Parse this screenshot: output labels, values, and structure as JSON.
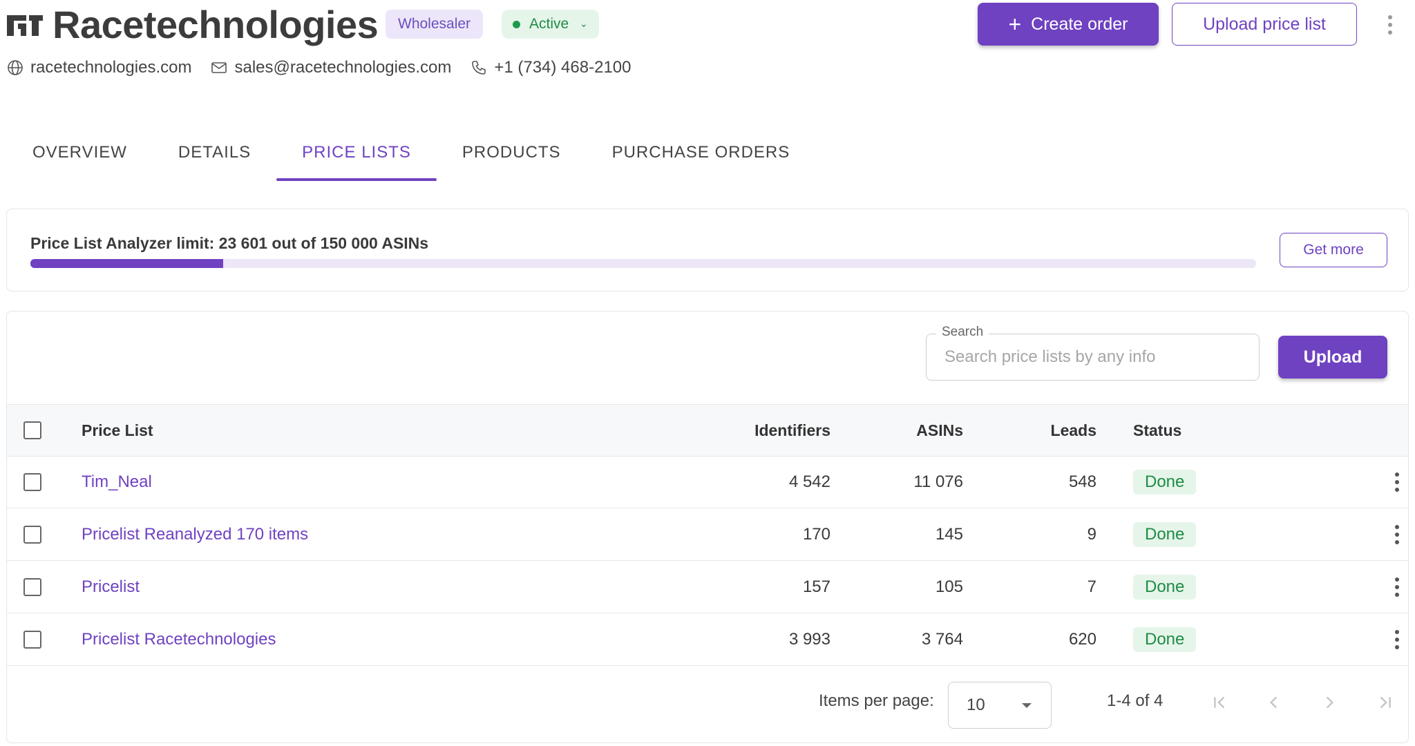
{
  "header": {
    "company_name": "Racetechnologies",
    "type_badge": "Wholesaler",
    "status_badge": "Active",
    "create_order_label": "Create order",
    "upload_price_list_label": "Upload price list",
    "contacts": {
      "website": "racetechnologies.com",
      "email": "sales@racetechnologies.com",
      "phone": "+1 (734) 468-2100"
    }
  },
  "tabs": [
    {
      "label": "OVERVIEW",
      "active": false
    },
    {
      "label": "DETAILS",
      "active": false
    },
    {
      "label": "PRICE LISTS",
      "active": true
    },
    {
      "label": "PRODUCTS",
      "active": false
    },
    {
      "label": "PURCHASE ORDERS",
      "active": false
    }
  ],
  "limit": {
    "text": "Price List Analyzer limit: 23 601 out of 150 000 ASINs",
    "used": 23601,
    "total": 150000,
    "get_more_label": "Get more"
  },
  "search": {
    "label": "Search",
    "placeholder": "Search price lists by any info",
    "value": ""
  },
  "upload_label": "Upload",
  "table": {
    "columns": {
      "name": "Price List",
      "identifiers": "Identifiers",
      "asins": "ASINs",
      "leads": "Leads",
      "status": "Status"
    },
    "rows": [
      {
        "name": "Tim_Neal",
        "identifiers": "4 542",
        "asins": "11 076",
        "leads": "548",
        "status": "Done"
      },
      {
        "name": "Pricelist Reanalyzed 170 items",
        "identifiers": "170",
        "asins": "145",
        "leads": "9",
        "status": "Done"
      },
      {
        "name": "Pricelist",
        "identifiers": "157",
        "asins": "105",
        "leads": "7",
        "status": "Done"
      },
      {
        "name": "Pricelist Racetechnologies",
        "identifiers": "3 993",
        "asins": "3 764",
        "leads": "620",
        "status": "Done"
      }
    ]
  },
  "pagination": {
    "items_per_page_label": "Items per page:",
    "items_per_page": "10",
    "range": "1-4 of 4"
  },
  "colors": {
    "accent": "#6f42c1",
    "success": "#1e8c45",
    "success_bg": "#e6f5ea"
  },
  "icons": {
    "website": "globe-icon",
    "email": "mail-icon",
    "phone": "phone-icon",
    "create": "plus-icon",
    "more": "more-vertical-icon",
    "first": "first-page-icon",
    "prev": "chevron-left-icon",
    "next": "chevron-right-icon",
    "last": "last-page-icon"
  }
}
